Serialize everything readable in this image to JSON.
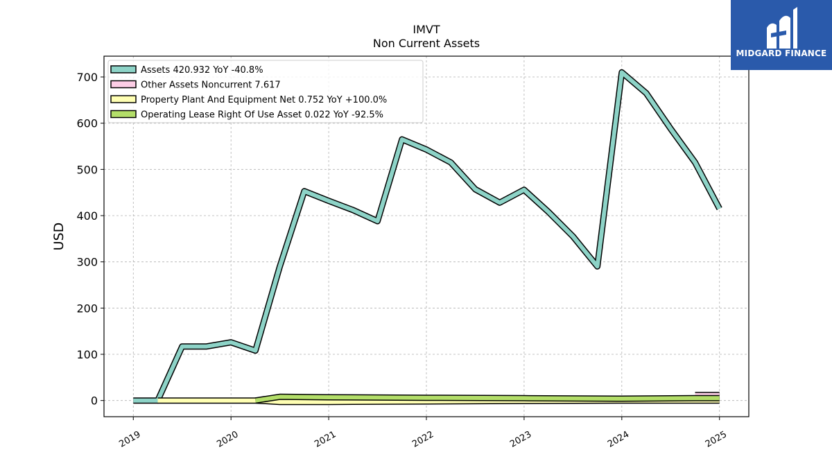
{
  "chart_data": {
    "type": "area",
    "title": "IMVT",
    "subtitle": "Non Current  Assets",
    "ylabel": "USD",
    "xlabel": "",
    "xlim": [
      2018.7,
      2025.3
    ],
    "ylim": [
      -35,
      745
    ],
    "yticks": [
      0,
      100,
      200,
      300,
      400,
      500,
      600,
      700
    ],
    "xticks": [
      "2019",
      "2020",
      "2021",
      "2022",
      "2023",
      "2024",
      "2025"
    ],
    "grid": true,
    "legend_position": "top-left",
    "series": [
      {
        "name": "Assets",
        "legend": "Assets  420.932 YoY -40.8%",
        "color": "#8dd3c7",
        "points": [
          [
            2019.0,
            0
          ],
          [
            2019.25,
            0
          ],
          [
            2019.5,
            117
          ],
          [
            2019.75,
            117
          ],
          [
            2020.0,
            126
          ],
          [
            2020.25,
            108
          ],
          [
            2020.5,
            290
          ],
          [
            2020.75,
            453
          ],
          [
            2021.0,
            432
          ],
          [
            2021.25,
            412
          ],
          [
            2021.5,
            388
          ],
          [
            2021.75,
            565
          ],
          [
            2022.0,
            543
          ],
          [
            2022.25,
            515
          ],
          [
            2022.5,
            457
          ],
          [
            2022.75,
            428
          ],
          [
            2023.0,
            456
          ],
          [
            2023.25,
            408
          ],
          [
            2023.5,
            355
          ],
          [
            2023.75,
            290
          ],
          [
            2024.0,
            710
          ],
          [
            2024.25,
            665
          ],
          [
            2024.5,
            588
          ],
          [
            2024.75,
            515
          ],
          [
            2025.0,
            415
          ]
        ]
      },
      {
        "name": "Other Assets Noncurrent",
        "legend": "Other Assets Noncurrent  7.617",
        "color": "#fccde5",
        "points": [
          [
            2024.75,
            12
          ],
          [
            2025.0,
            12
          ]
        ]
      },
      {
        "name": "Property Plant And Equipment Net",
        "legend": "Property Plant And Equipment Net  0.752 YoY +100.0%",
        "color": "#ffffb3",
        "points": [
          [
            2019.25,
            0
          ],
          [
            2020.25,
            0
          ],
          [
            2020.5,
            -3
          ],
          [
            2021.0,
            -3
          ],
          [
            2022.0,
            -2
          ],
          [
            2023.0,
            -1
          ],
          [
            2024.0,
            0
          ],
          [
            2025.0,
            0
          ]
        ]
      },
      {
        "name": "Operating Lease Right Of Use Asset",
        "legend": "Operating Lease Right Of Use Asset  0.022 YoY -92.5%",
        "color": "#b3de69",
        "points": [
          [
            2020.25,
            0
          ],
          [
            2020.5,
            8
          ],
          [
            2021.0,
            7
          ],
          [
            2022.0,
            6
          ],
          [
            2023.0,
            5
          ],
          [
            2024.0,
            4
          ],
          [
            2024.75,
            5
          ],
          [
            2025.0,
            5
          ]
        ]
      }
    ]
  },
  "logo": {
    "brand": "MIDGARD FINANCE"
  }
}
